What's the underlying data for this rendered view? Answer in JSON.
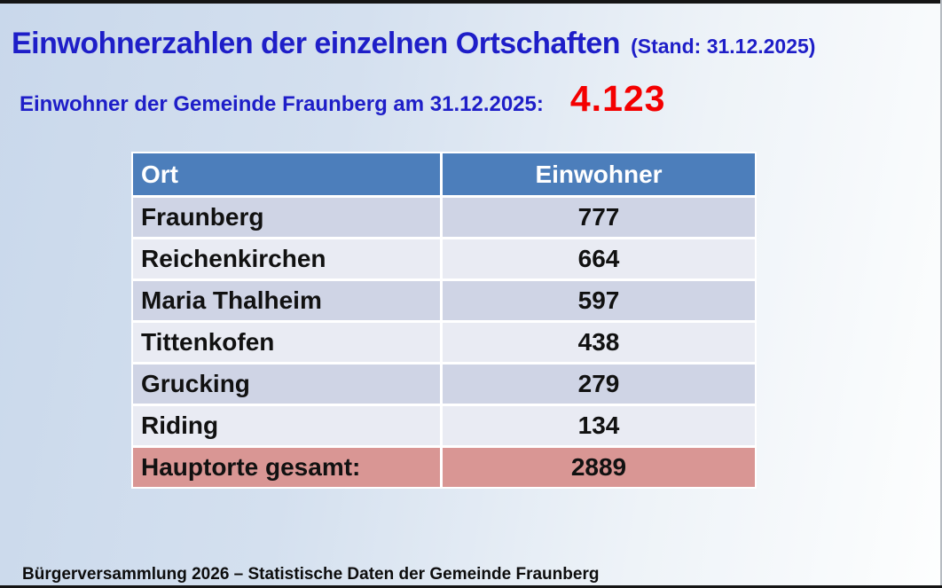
{
  "slide": {
    "title": "Einwohnerzahlen der einzelnen Ortschaften",
    "title_suffix": "(Stand: 31.12.2025)",
    "subtitle_label": "Einwohner der Gemeinde Fraunberg am 31.12.2025:",
    "subtitle_value": "4.123",
    "footer": "Bürgerversammlung 2026 – Statistische Daten der Gemeinde Fraunberg"
  },
  "table": {
    "headers": [
      "Ort",
      "Einwohner"
    ],
    "rows": [
      {
        "ort": "Fraunberg",
        "einwohner": "777"
      },
      {
        "ort": "Reichenkirchen",
        "einwohner": "664"
      },
      {
        "ort": "Maria Thalheim",
        "einwohner": "597"
      },
      {
        "ort": "Tittenkofen",
        "einwohner": "438"
      },
      {
        "ort": "Grucking",
        "einwohner": "279"
      },
      {
        "ort": "Riding",
        "einwohner": "134"
      }
    ],
    "total_row": {
      "ort": "Hauptorte gesamt:",
      "einwohner": "2889"
    }
  },
  "colors": {
    "title_blue": "#1e1ec8",
    "value_red": "#f40000",
    "table_header_blue": "#4c7ebb",
    "row_dark": "#cfd4e5",
    "row_light": "#e9ebf3",
    "total_row_pink": "#d99694",
    "background_left": "#c9d8eb",
    "background_right": "#fdfefe",
    "edge_bar": "#151515"
  }
}
